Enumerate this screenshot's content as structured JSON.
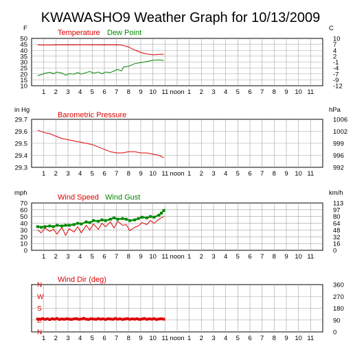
{
  "title": "KWAWASHO9 Weather Graph for 10/13/2009",
  "x_ticks": [
    "1",
    "2",
    "3",
    "4",
    "5",
    "6",
    "7",
    "8",
    "9",
    "10",
    "11",
    "noon",
    "1",
    "2",
    "3",
    "4",
    "5",
    "6",
    "7",
    "8",
    "9",
    "10",
    "11"
  ],
  "colors": {
    "red": "#dd0000",
    "green": "#008800",
    "grid": "#a0a0a0",
    "frame": "#000000"
  },
  "chart_data": [
    {
      "id": "temperature",
      "type": "line",
      "left_unit": "F",
      "right_unit": "C",
      "ylim": [
        10,
        55
      ],
      "left_ticks": [
        "50",
        "45",
        "40",
        "35",
        "30",
        "25",
        "20",
        "15",
        "10"
      ],
      "right_ticks": [
        "10",
        "7",
        "4",
        "2",
        "-1",
        "-4",
        "-7",
        "-9",
        "-12"
      ],
      "legend": [
        {
          "label": "Temperature",
          "color": "#dd0000"
        },
        {
          "label": "Dew Point",
          "color": "#008800"
        }
      ],
      "series": [
        {
          "name": "Temperature",
          "color": "#dd0000",
          "x": [
            0.0,
            0.5,
            1.0,
            1.5,
            2.0,
            2.5,
            3.0,
            3.5,
            4.0,
            4.5,
            5.0,
            5.5,
            6.0,
            6.5,
            7.0,
            7.5,
            8.0,
            8.5,
            9.0,
            9.5,
            10.0,
            10.4
          ],
          "y": [
            48.8,
            48.6,
            48.6,
            48.8,
            48.8,
            48.8,
            48.8,
            48.9,
            48.9,
            48.8,
            48.8,
            48.9,
            48.8,
            48.9,
            48.5,
            46.8,
            44.0,
            41.6,
            40.2,
            39.4,
            39.8,
            40.0
          ]
        },
        {
          "name": "Dew Point",
          "color": "#008800",
          "x": [
            0.0,
            0.3,
            0.6,
            1.0,
            1.3,
            1.6,
            2.0,
            2.3,
            2.6,
            3.0,
            3.3,
            3.6,
            4.0,
            4.3,
            4.6,
            5.0,
            5.3,
            5.6,
            6.0,
            6.3,
            6.6,
            6.9,
            7.1,
            7.5,
            8.0,
            8.5,
            9.0,
            9.5,
            10.0,
            10.4
          ],
          "y": [
            19.5,
            20.5,
            21.8,
            22.8,
            21.5,
            23.0,
            22.0,
            20.0,
            21.5,
            21.0,
            22.5,
            21.0,
            22.5,
            23.5,
            22.0,
            23.0,
            21.5,
            23.0,
            22.5,
            24.0,
            25.5,
            24.0,
            28.0,
            28.5,
            31.0,
            32.0,
            33.0,
            34.2,
            34.5,
            34.0
          ]
        }
      ]
    },
    {
      "id": "pressure",
      "type": "line",
      "left_unit": "in Hg",
      "right_unit": "hPa",
      "ylim": [
        29.3,
        29.7
      ],
      "left_ticks": [
        "29.7",
        "29.6",
        "29.5",
        "29.4",
        "29.3"
      ],
      "right_ticks": [
        "1006",
        "1002",
        "999",
        "996",
        "992"
      ],
      "legend": [
        {
          "label": "Barometric Pressure",
          "color": "#dd0000"
        }
      ],
      "series": [
        {
          "name": "Barometric Pressure",
          "color": "#dd0000",
          "x": [
            0.0,
            0.5,
            1.0,
            1.5,
            2.0,
            2.5,
            3.0,
            3.5,
            4.0,
            4.5,
            5.0,
            5.5,
            6.0,
            6.5,
            7.0,
            7.5,
            8.0,
            8.5,
            9.0,
            9.5,
            10.0,
            10.4
          ],
          "y": [
            29.61,
            29.59,
            29.58,
            29.56,
            29.54,
            29.53,
            29.52,
            29.51,
            29.5,
            29.49,
            29.47,
            29.45,
            29.43,
            29.42,
            29.42,
            29.43,
            29.43,
            29.42,
            29.42,
            29.41,
            29.4,
            29.38
          ]
        }
      ]
    },
    {
      "id": "wind",
      "type": "line",
      "left_unit": "mph",
      "right_unit": "km/h",
      "ylim": [
        0,
        70
      ],
      "left_ticks": [
        "70",
        "60",
        "50",
        "40",
        "30",
        "20",
        "10",
        "0"
      ],
      "right_ticks": [
        "113",
        "97",
        "80",
        "64",
        "48",
        "32",
        "16",
        "0"
      ],
      "legend": [
        {
          "label": "Wind Speed",
          "color": "#dd0000"
        },
        {
          "label": "Wind Gust",
          "color": "#008800"
        }
      ],
      "series": [
        {
          "name": "Wind Speed",
          "color": "#dd0000",
          "x": [
            0.0,
            0.3,
            0.6,
            1.0,
            1.3,
            1.6,
            2.0,
            2.3,
            2.6,
            3.0,
            3.3,
            3.6,
            4.0,
            4.3,
            4.6,
            5.0,
            5.3,
            5.6,
            6.0,
            6.3,
            6.6,
            7.0,
            7.3,
            7.6,
            8.0,
            8.3,
            8.6,
            9.0,
            9.3,
            9.6,
            10.0,
            10.4
          ],
          "y": [
            30,
            26,
            33,
            28,
            31,
            24,
            34,
            22,
            32,
            27,
            35,
            26,
            37,
            30,
            39,
            31,
            40,
            35,
            42,
            33,
            43,
            37,
            38,
            29,
            34,
            36,
            41,
            38,
            44,
            40,
            46,
            50
          ]
        },
        {
          "name": "Wind Gust",
          "color": "#008800",
          "x": [
            0.0,
            0.3,
            0.6,
            1.0,
            1.3,
            1.6,
            2.0,
            2.3,
            2.6,
            3.0,
            3.3,
            3.6,
            4.0,
            4.3,
            4.6,
            5.0,
            5.3,
            5.6,
            6.0,
            6.3,
            6.6,
            7.0,
            7.3,
            7.6,
            8.0,
            8.3,
            8.6,
            9.0,
            9.3,
            9.6,
            10.0,
            10.2,
            10.4
          ],
          "y": [
            35,
            34,
            35,
            36,
            35,
            37,
            36,
            37,
            37,
            38,
            40,
            39,
            42,
            41,
            44,
            43,
            45,
            44,
            46,
            48,
            46,
            47,
            46,
            44,
            45,
            47,
            49,
            48,
            50,
            49,
            52,
            55,
            59
          ]
        }
      ]
    },
    {
      "id": "winddir",
      "type": "scatter",
      "left_unit": "",
      "right_unit": "",
      "ylim": [
        0,
        360
      ],
      "left_ticks": [
        "N",
        "W",
        "S",
        "E",
        "N"
      ],
      "right_ticks": [
        "360",
        "270",
        "180",
        "90",
        "0"
      ],
      "legend": [
        {
          "label": "Wind Dir (deg)",
          "color": "#dd0000"
        }
      ],
      "series": [
        {
          "name": "Wind Dir (deg)",
          "color": "#dd0000",
          "x": [
            0.0,
            0.2,
            0.4,
            0.6,
            0.8,
            1.0,
            1.2,
            1.4,
            1.6,
            1.8,
            2.0,
            2.2,
            2.4,
            2.6,
            2.8,
            3.0,
            3.2,
            3.4,
            3.6,
            3.8,
            4.0,
            4.2,
            4.4,
            4.6,
            4.8,
            5.0,
            5.2,
            5.4,
            5.6,
            5.8,
            6.0,
            6.2,
            6.4,
            6.6,
            6.8,
            7.0,
            7.2,
            7.4,
            7.6,
            7.8,
            8.0,
            8.2,
            8.4,
            8.6,
            8.8,
            9.0,
            9.2,
            9.4,
            9.6,
            9.8,
            10.0,
            10.2,
            10.4
          ],
          "y": [
            98,
            95,
            101,
            96,
            99,
            94,
            100,
            97,
            102,
            95,
            98,
            96,
            100,
            97,
            95,
            99,
            101,
            96,
            98,
            103,
            97,
            95,
            100,
            98,
            96,
            101,
            97,
            99,
            95,
            100,
            98,
            96,
            102,
            97,
            99,
            95,
            98,
            101,
            96,
            99,
            97,
            100,
            95,
            98,
            102,
            96,
            99,
            97,
            101,
            95,
            98,
            100,
            97
          ]
        }
      ]
    }
  ]
}
